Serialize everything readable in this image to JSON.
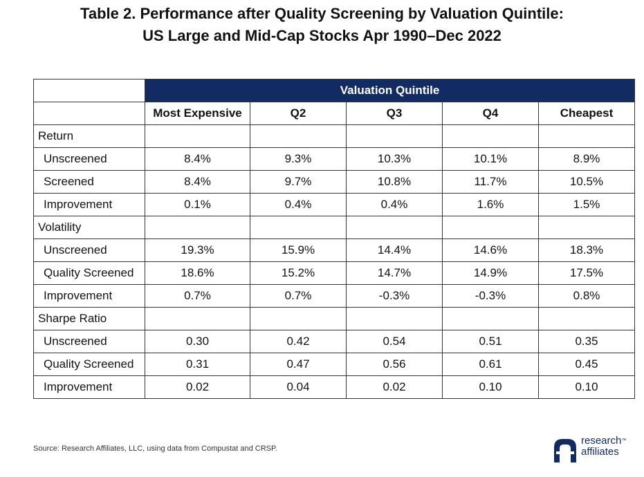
{
  "title": {
    "line1": "Table 2.  Performance after Quality Screening by Valuation Quintile:",
    "line2": "US Large and Mid-Cap Stocks Apr 1990–Dec 2022"
  },
  "table": {
    "band_label": "Valuation Quintile",
    "columns": [
      "Most Expensive",
      "Q2",
      "Q3",
      "Q4",
      "Cheapest"
    ],
    "sections": [
      {
        "name": "Return",
        "rows": [
          {
            "label": "Unscreened",
            "values": [
              "8.4%",
              "9.3%",
              "10.3%",
              "10.1%",
              "8.9%"
            ]
          },
          {
            "label": "Screened",
            "values": [
              "8.4%",
              "9.7%",
              "10.8%",
              "11.7%",
              "10.5%"
            ]
          },
          {
            "label": "Improvement",
            "values": [
              "0.1%",
              "0.4%",
              "0.4%",
              "1.6%",
              "1.5%"
            ]
          }
        ]
      },
      {
        "name": "Volatility",
        "rows": [
          {
            "label": "Unscreened",
            "values": [
              "19.3%",
              "15.9%",
              "14.4%",
              "14.6%",
              "18.3%"
            ]
          },
          {
            "label": "Quality Screened",
            "values": [
              "18.6%",
              "15.2%",
              "14.7%",
              "14.9%",
              "17.5%"
            ]
          },
          {
            "label": "Improvement",
            "values": [
              "0.7%",
              "0.7%",
              "-0.3%",
              "-0.3%",
              "0.8%"
            ]
          }
        ]
      },
      {
        "name": "Sharpe Ratio",
        "rows": [
          {
            "label": "Unscreened",
            "values": [
              "0.30",
              "0.42",
              "0.54",
              "0.51",
              "0.35"
            ]
          },
          {
            "label": "Quality Screened",
            "values": [
              "0.31",
              "0.47",
              "0.56",
              "0.61",
              "0.45"
            ]
          },
          {
            "label": "Improvement",
            "values": [
              "0.02",
              "0.04",
              "0.02",
              "0.10",
              "0.10"
            ]
          }
        ]
      }
    ]
  },
  "source": "Source: Research Affiliates, LLC, using data from Compustat and CRSP.",
  "logo": {
    "line1": "research",
    "line2": "affiliates",
    "trademark": "™",
    "icon": "research-affiliates-logo-mark"
  },
  "colors": {
    "header_band": "#132b63",
    "text": "#111111",
    "border": "#333333"
  }
}
